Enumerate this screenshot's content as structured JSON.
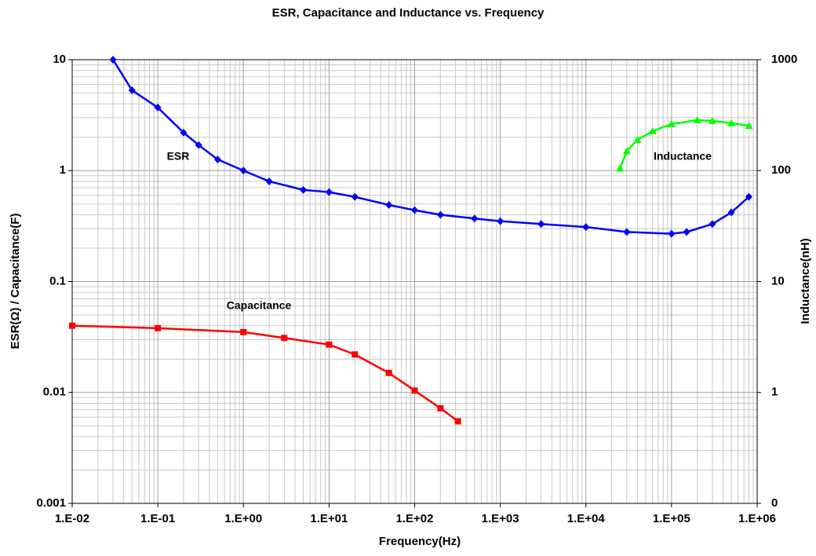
{
  "chart_data": {
    "type": "line",
    "title": "ESR, Capacitance and Inductance vs. Frequency",
    "x_label": "Frequency(Hz)",
    "y_label": "ESR(Ω) / Capacitance(F)",
    "y2_label": "Inductance(nH)",
    "log_x": true,
    "log_y": true,
    "log_y2": true,
    "grid": true,
    "minor_grid": true,
    "xlim": [
      0.01,
      1000000
    ],
    "xticks": [
      {
        "value": 0.01,
        "label": "1.E-02"
      },
      {
        "value": 0.1,
        "label": "1.E-01"
      },
      {
        "value": 1,
        "label": "1.E+00"
      },
      {
        "value": 10,
        "label": "1.E+01"
      },
      {
        "value": 100,
        "label": "1.E+02"
      },
      {
        "value": 1000,
        "label": "1.E+03"
      },
      {
        "value": 10000,
        "label": "1.E+04"
      },
      {
        "value": 100000,
        "label": "1.E+05"
      },
      {
        "value": 1000000,
        "label": "1.E+06"
      }
    ],
    "ylim": [
      0.001,
      10
    ],
    "yticks": [
      0.001,
      0.01,
      0.1,
      1,
      10
    ],
    "y2lim": [
      0.1,
      1000
    ],
    "y2ticks": [
      {
        "value": 0.1,
        "label": "0"
      },
      1,
      10,
      100,
      1000
    ],
    "series": [
      {
        "name": "ESR",
        "color": "#0000ff",
        "marker": "diamond",
        "x": [
          0.03,
          0.05,
          0.1,
          0.2,
          0.3,
          0.5,
          1,
          2,
          5,
          10,
          20,
          50,
          100,
          200,
          500,
          1000,
          3000,
          10000,
          30000,
          100000,
          150000,
          300000,
          500000,
          800000
        ],
        "values": [
          10,
          5.3,
          3.7,
          2.2,
          1.7,
          1.26,
          1.0,
          0.8,
          0.67,
          0.64,
          0.58,
          0.49,
          0.44,
          0.4,
          0.37,
          0.35,
          0.33,
          0.31,
          0.28,
          0.27,
          0.28,
          0.33,
          0.42,
          0.58
        ]
      },
      {
        "name": "Capacitance",
        "color": "#ff0000",
        "marker": "square",
        "x": [
          0.01,
          0.1,
          1,
          3,
          10,
          20,
          50,
          100,
          200,
          320
        ],
        "values": [
          0.04,
          0.038,
          0.035,
          0.031,
          0.027,
          0.022,
          0.015,
          0.0104,
          0.0072,
          0.0055
        ]
      },
      {
        "name": "Inductance",
        "color": "#00ff00",
        "marker": "triangle",
        "axis": "y2",
        "x": [
          25000,
          30000,
          40000,
          60000,
          100000,
          200000,
          300000,
          500000,
          800000
        ],
        "values": [
          105,
          150,
          190,
          227,
          263,
          285,
          281,
          268,
          254
        ]
      }
    ]
  }
}
